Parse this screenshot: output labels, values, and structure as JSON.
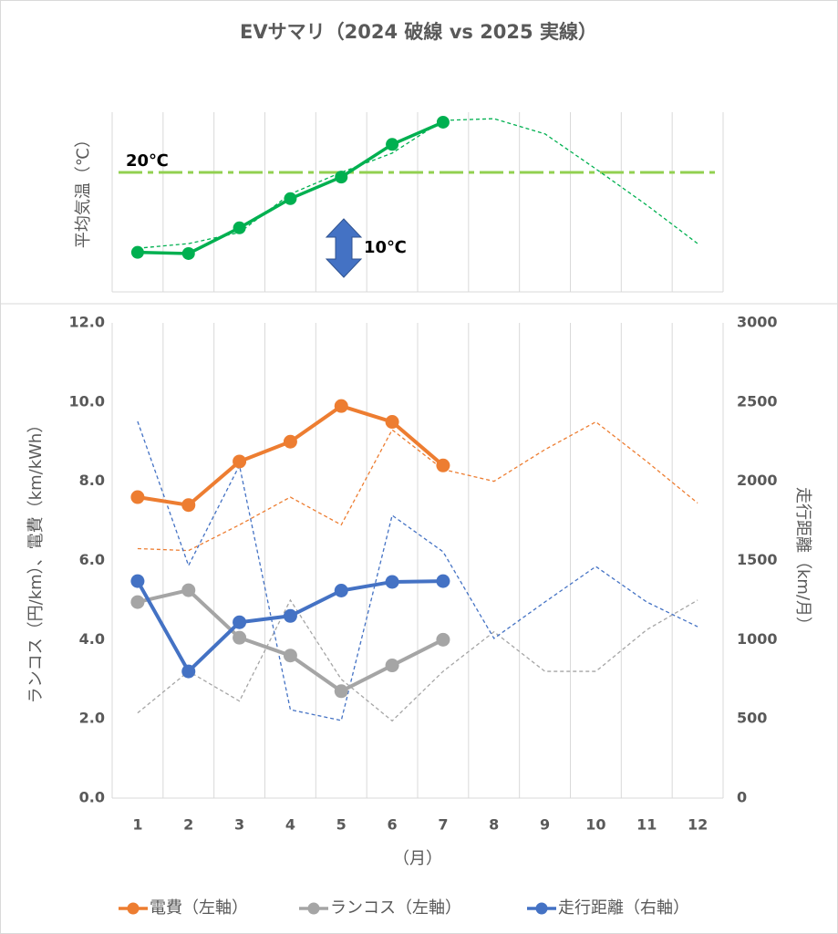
{
  "chart_data": [
    {
      "type": "line",
      "title": "EVサマリ（2024 破線 vs 2025 実線）",
      "y_label": "平均気温（℃）",
      "ylim": [
        0,
        30
      ],
      "series": [
        {
          "color": "#00b050",
          "style": "solid",
          "values": [
            6.3,
            6.1,
            10.5,
            15.5,
            19.2,
            24.8,
            28.6,
            null,
            null,
            null,
            null,
            null
          ]
        },
        {
          "color": "#00b050",
          "style": "dashed",
          "values": [
            7.0,
            7.8,
            9.7,
            16.3,
            20.0,
            23.3,
            28.9,
            29.2,
            26.6,
            20.6,
            14.4,
            7.8
          ]
        }
      ],
      "reference_line": {
        "value": 20,
        "label": "20℃",
        "color": "#92d050"
      },
      "annotation": {
        "value": 10,
        "label": "10℃",
        "color": "#4472c4"
      }
    },
    {
      "type": "line",
      "x_label": "（月）",
      "y_label": "ランコス（円/km）、電費（km/kWh）",
      "y2_label": "走行距離（km/月）",
      "categories": [
        "1",
        "2",
        "3",
        "4",
        "5",
        "6",
        "7",
        "8",
        "9",
        "10",
        "11",
        "12"
      ],
      "ylim": [
        0,
        12
      ],
      "yticks": [
        {
          "value": 0,
          "label": "0.0"
        },
        {
          "value": 2,
          "label": "2.0"
        },
        {
          "value": 4,
          "label": "4.0"
        },
        {
          "value": 6,
          "label": "6.0"
        },
        {
          "value": 8,
          "label": "8.0"
        },
        {
          "value": 10,
          "label": "10.0"
        },
        {
          "value": 12,
          "label": "12.0"
        }
      ],
      "y2lim": [
        0,
        3000
      ],
      "y2ticks": [
        0,
        500,
        1000,
        1500,
        2000,
        2500,
        3000
      ],
      "series": [
        {
          "name": "電費（左軸）",
          "color": "#ed7d31",
          "axis": "y",
          "values": [
            7.6,
            7.4,
            8.5,
            9.0,
            9.9,
            9.5,
            8.4,
            null,
            null,
            null,
            null,
            null
          ]
        },
        {
          "name": "ランコス（左軸）",
          "color": "#a5a5a5",
          "axis": "y",
          "values": [
            4.95,
            5.25,
            4.05,
            3.6,
            2.7,
            3.35,
            4.0,
            null,
            null,
            null,
            null,
            null
          ]
        },
        {
          "name": "走行距離（右軸）",
          "color": "#4472c4",
          "axis": "y2",
          "values": [
            1370,
            800,
            1110,
            1150,
            1310,
            1365,
            1370,
            null,
            null,
            null,
            null,
            null
          ]
        },
        {
          "color": "#ed7d31",
          "axis": "y",
          "style": "dashed",
          "values": [
            6.3,
            6.25,
            6.9,
            7.6,
            6.9,
            9.3,
            8.3,
            8.0,
            8.8,
            9.5,
            8.5,
            7.45
          ]
        },
        {
          "color": "#a5a5a5",
          "axis": "y",
          "style": "dashed",
          "values": [
            2.15,
            3.2,
            2.45,
            5.0,
            3.0,
            1.95,
            3.2,
            4.2,
            3.2,
            3.2,
            4.25,
            5.0
          ]
        },
        {
          "color": "#4472c4",
          "axis": "y2",
          "style": "dashed",
          "values": [
            2378,
            1468,
            2100,
            558,
            490,
            1785,
            1555,
            1008,
            1238,
            1462,
            1238,
            1082
          ]
        }
      ]
    }
  ]
}
